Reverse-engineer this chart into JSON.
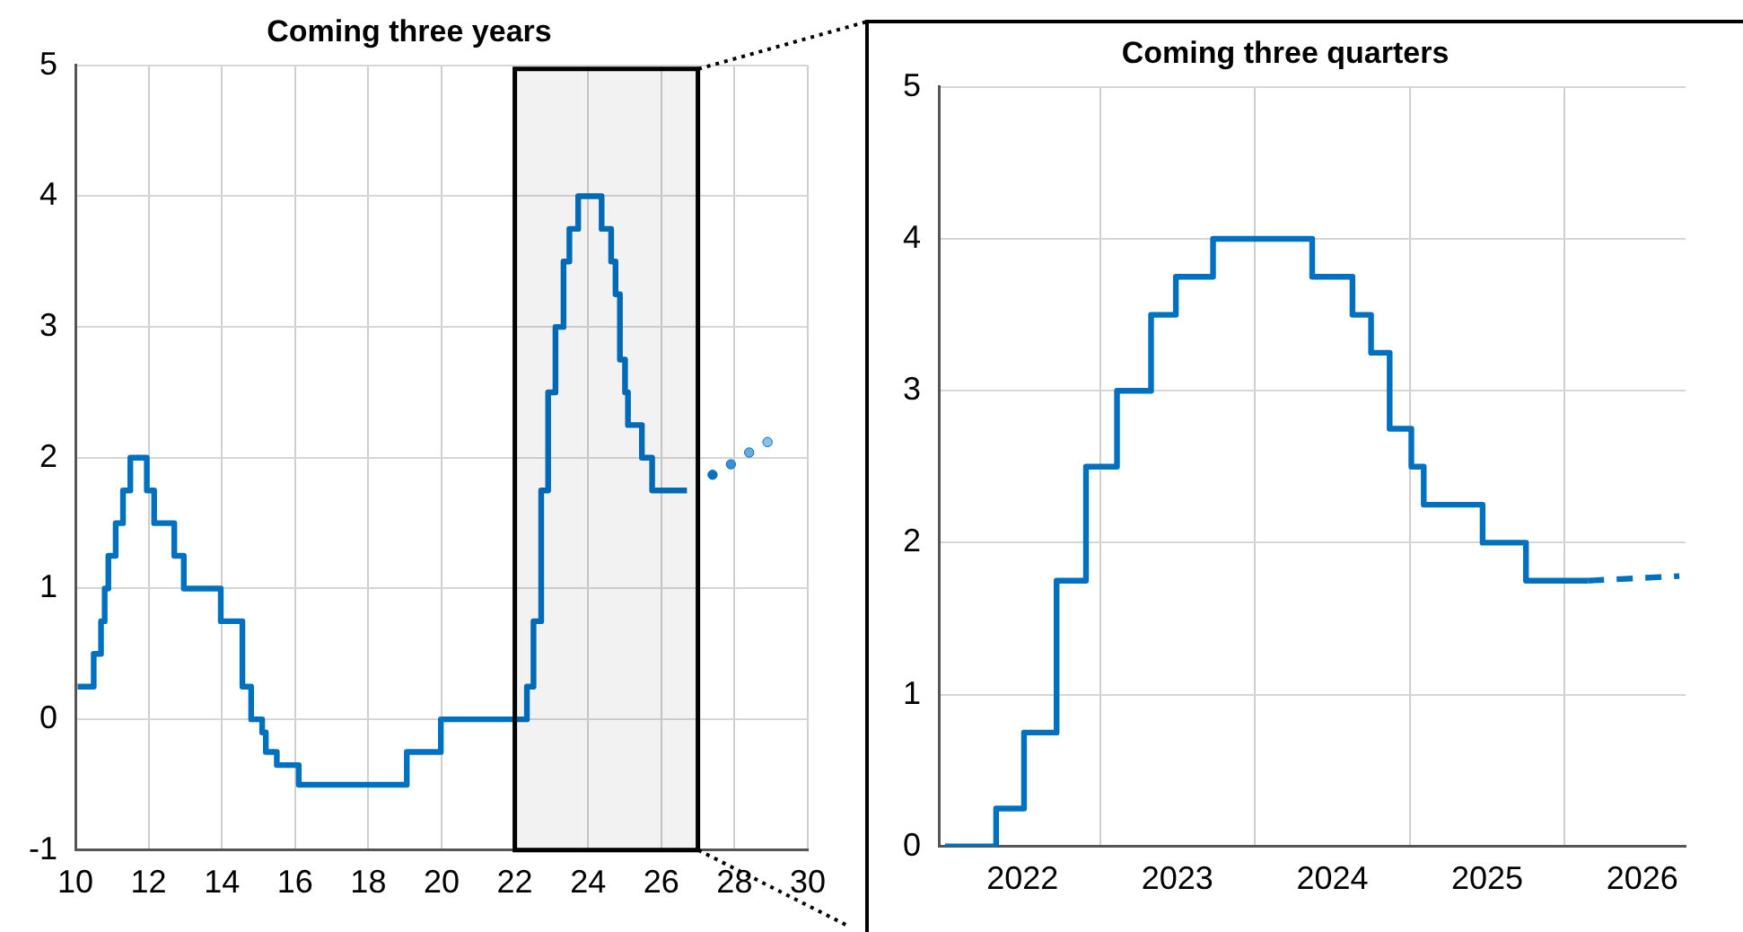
{
  "chart_data": [
    {
      "type": "step",
      "title": "Coming three years",
      "xlim": [
        10,
        30
      ],
      "xticks": [
        10,
        12,
        14,
        16,
        18,
        20,
        22,
        24,
        26,
        28,
        30
      ],
      "ylim": [
        -1,
        5
      ],
      "yticks": [
        -1,
        0,
        1,
        2,
        3,
        4,
        5
      ],
      "grid": true,
      "line_style": "solid",
      "bands": [
        {
          "axis": "x",
          "from": 22,
          "to": 27,
          "color": "#000000"
        }
      ],
      "series": [
        {
          "color": "#0070c0",
          "x": [
            10.06,
            10.5,
            10.7,
            10.8,
            10.9,
            11.1,
            11.3,
            11.5,
            11.95,
            12.15,
            12.7,
            12.96,
            13.97,
            14.56,
            14.8,
            15.1,
            15.2,
            15.5,
            16.1,
            19.05,
            19.98,
            22.33,
            22.51,
            22.72,
            22.91,
            23.11,
            23.33,
            23.49,
            23.73,
            24.37,
            24.63,
            24.75,
            24.87,
            25.01,
            25.09,
            25.47,
            25.75,
            26.7
          ],
          "values": [
            0.25,
            0.5,
            0.75,
            1,
            1.25,
            1.5,
            1.75,
            2,
            1.75,
            1.5,
            1.25,
            1,
            0.75,
            0.25,
            0,
            -0.1,
            -0.25,
            -0.35,
            -0.5,
            -0.25,
            0,
            0.25,
            0.75,
            1.75,
            2.5,
            3,
            3.5,
            3.75,
            4,
            3.75,
            3.5,
            3.25,
            2.75,
            2.5,
            2.25,
            2,
            1.75,
            1.75
          ]
        },
        {
          "type": "scatter",
          "marker": "circle",
          "color": "#0070c0",
          "colors": [
            "#0070c0",
            "#3a8fd0",
            "#6aaade",
            "#8fc0e8"
          ],
          "x": [
            27.4,
            27.9,
            28.4,
            28.9
          ],
          "values": [
            1.87,
            1.95,
            2.04,
            2.12
          ]
        }
      ]
    },
    {
      "type": "step",
      "title": "Coming three quarters",
      "xlim": [
        2021.96,
        2026.78
      ],
      "xticks": [
        {
          "value": 2022.5,
          "label": "2022"
        },
        {
          "value": 2023,
          "label": null
        },
        {
          "value": 2023.5,
          "label": "2023"
        },
        {
          "value": 2024,
          "label": null
        },
        {
          "value": 2024.5,
          "label": "2024"
        },
        {
          "value": 2025,
          "label": null
        },
        {
          "value": 2025.5,
          "label": "2025"
        },
        {
          "value": 2026,
          "label": null
        },
        {
          "value": 2026.5,
          "label": "2026"
        }
      ],
      "ylim": [
        0,
        5
      ],
      "yticks": [
        0,
        1,
        2,
        3,
        4,
        5
      ],
      "grid": true,
      "series": [
        {
          "color": "#0070c0",
          "line_style": "solid",
          "x": [
            2022.0,
            2022.33,
            2022.51,
            2022.72,
            2022.91,
            2023.11,
            2023.33,
            2023.49,
            2023.73,
            2024.37,
            2024.63,
            2024.75,
            2024.87,
            2025.01,
            2025.09,
            2025.47,
            2025.75,
            2026.15
          ],
          "values": [
            0,
            0.25,
            0.75,
            1.75,
            2.5,
            3,
            3.5,
            3.75,
            4,
            3.75,
            3.5,
            3.25,
            2.75,
            2.5,
            2.25,
            2,
            1.75,
            1.75
          ]
        },
        {
          "type": "line",
          "color": "#0070c0",
          "line_style": "dashed",
          "x": [
            2026.15,
            2026.74
          ],
          "values": [
            1.75,
            1.78
          ]
        }
      ]
    }
  ]
}
